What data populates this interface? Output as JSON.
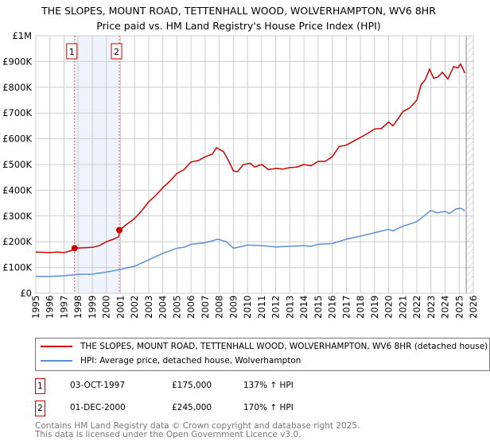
{
  "chart_data": {
    "type": "line",
    "title": "THE SLOPES, MOUNT ROAD, TETTENHALL WOOD, WOLVERHAMPTON, WV6 8HR",
    "subtitle": "Price paid vs. HM Land Registry's House Price Index (HPI)",
    "xlim": [
      1995,
      2026
    ],
    "ylim": [
      0,
      1000000
    ],
    "yticks": [
      {
        "v": 0,
        "l": "£0"
      },
      {
        "v": 100000,
        "l": "£100K"
      },
      {
        "v": 200000,
        "l": "£200K"
      },
      {
        "v": 300000,
        "l": "£300K"
      },
      {
        "v": 400000,
        "l": "£400K"
      },
      {
        "v": 500000,
        "l": "£500K"
      },
      {
        "v": 600000,
        "l": "£600K"
      },
      {
        "v": 700000,
        "l": "£700K"
      },
      {
        "v": 800000,
        "l": "£800K"
      },
      {
        "v": 900000,
        "l": "£900K"
      },
      {
        "v": 1000000,
        "l": "£1M"
      }
    ],
    "xticks": [
      "1995",
      "1996",
      "1997",
      "1998",
      "1999",
      "2000",
      "2001",
      "2002",
      "2003",
      "2004",
      "2005",
      "2006",
      "2007",
      "2008",
      "2009",
      "2010",
      "2011",
      "2012",
      "2013",
      "2014",
      "2015",
      "2016",
      "2017",
      "2018",
      "2019",
      "2020",
      "2021",
      "2022",
      "2023",
      "2024",
      "2025",
      "2026"
    ],
    "grid": true,
    "future_hatch_from": 2025.5,
    "series": [
      {
        "name": "THE SLOPES, MOUNT ROAD, TETTENHALL WOOD, WOLVERHAMPTON, WV6 8HR (detached house)",
        "color": "#cc0000",
        "x": [
          1995,
          1996,
          1996.5,
          1997,
          1997.5,
          1997.75,
          1998.5,
          1999,
          1999.5,
          2000,
          2000.5,
          2000.9,
          2000.92,
          2001.5,
          2002,
          2002.5,
          2003,
          2003.5,
          2004,
          2004.5,
          2005,
          2005.5,
          2006,
          2006.5,
          2007,
          2007.5,
          2007.8,
          2008.3,
          2008.7,
          2009,
          2009.3,
          2009.7,
          2010.2,
          2010.5,
          2011,
          2011.5,
          2012,
          2012.5,
          2013,
          2013.5,
          2014,
          2014.5,
          2015,
          2015.5,
          2016,
          2016.5,
          2017,
          2017.5,
          2018,
          2018.5,
          2019,
          2019.5,
          2020,
          2020.3,
          2020.7,
          2021,
          2021.5,
          2022,
          2022.3,
          2022.6,
          2022.9,
          2023.2,
          2023.5,
          2023.8,
          2024.2,
          2024.6,
          2024.9,
          2025.1,
          2025.4
        ],
        "y": [
          160000,
          158000,
          160000,
          158000,
          165000,
          175000,
          177000,
          178000,
          185000,
          200000,
          210000,
          220000,
          245000,
          270000,
          290000,
          320000,
          355000,
          380000,
          410000,
          435000,
          465000,
          480000,
          510000,
          515000,
          530000,
          540000,
          565000,
          550000,
          510000,
          475000,
          472000,
          500000,
          505000,
          490000,
          500000,
          480000,
          485000,
          482000,
          488000,
          490000,
          500000,
          495000,
          512000,
          512000,
          530000,
          570000,
          575000,
          590000,
          605000,
          620000,
          638000,
          640000,
          665000,
          650000,
          680000,
          705000,
          720000,
          750000,
          810000,
          830000,
          870000,
          835000,
          840000,
          858000,
          832000,
          880000,
          875000,
          890000,
          855000
        ]
      },
      {
        "name": "HPI: Average price, detached house, Wolverhampton",
        "color": "#5b8fd4",
        "x": [
          1995,
          1996,
          1997,
          1998,
          1999,
          2000,
          2001,
          2002,
          2003,
          2004,
          2005,
          2005.5,
          2006,
          2007,
          2007.9,
          2008.5,
          2009,
          2009.5,
          2010,
          2011,
          2012,
          2013,
          2014,
          2014.5,
          2015,
          2016,
          2017,
          2018,
          2019,
          2020,
          2020.3,
          2021,
          2022,
          2022.5,
          2023,
          2023.4,
          2024,
          2024.3,
          2024.8,
          2025.1,
          2025.4
        ],
        "y": [
          65000,
          65000,
          68000,
          73000,
          74000,
          82000,
          92000,
          105000,
          130000,
          155000,
          175000,
          178000,
          190000,
          196000,
          210000,
          200000,
          175000,
          180000,
          187000,
          185000,
          180000,
          182000,
          185000,
          182000,
          190000,
          193000,
          210000,
          222000,
          235000,
          248000,
          242000,
          260000,
          278000,
          300000,
          322000,
          312000,
          318000,
          310000,
          328000,
          330000,
          320000
        ]
      }
    ],
    "sales": [
      {
        "id": "1",
        "x": 1997.75,
        "price": 175000,
        "date": "03-OCT-1997",
        "price_label": "£175,000",
        "hpi": "137% ↑ HPI"
      },
      {
        "id": "2",
        "x": 2000.92,
        "price": 245000,
        "date": "01-DEC-2000",
        "price_label": "£245,000",
        "hpi": "170% ↑ HPI"
      }
    ]
  },
  "legend": {
    "red": "THE SLOPES, MOUNT ROAD, TETTENHALL WOOD, WOLVERHAMPTON, WV6 8HR (detached house)",
    "blue": "HPI: Average price, detached house, Wolverhampton"
  },
  "footer": {
    "line1": "Contains HM Land Registry data © Crown copyright and database right 2025.",
    "line2": "This data is licensed under the Open Government Licence v3.0."
  }
}
